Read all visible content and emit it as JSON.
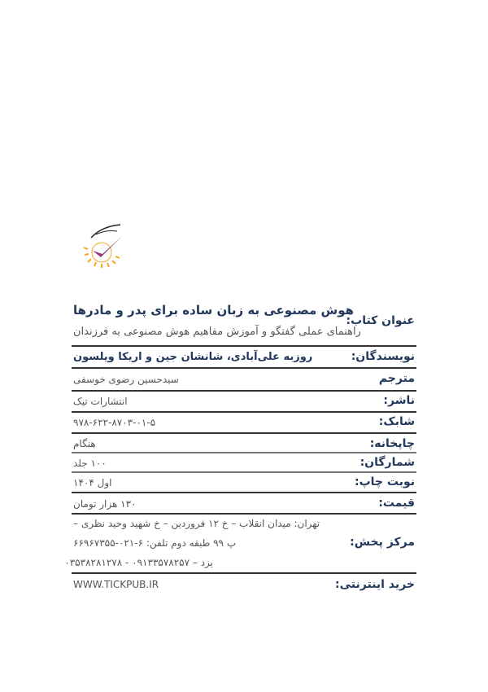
{
  "publisher_logo": {
    "text": "انتشارات تیک",
    "colors": {
      "check": "#8a3d78",
      "sun": "#f5a623"
    }
  },
  "book": {
    "title_label": "عنوان کتاب:",
    "title": "هوش مصنوعی به زبان ساده برای پدر و مادرها",
    "subtitle": "راهنمای عملی گفتگو و آموزش مفاهیم هوش مصنوعی به فرزندان"
  },
  "fields": {
    "authors": {
      "label": "نویسندگان:",
      "value": "روزبه علی‌آبادی، شانشان جین و اریکا ویلسون"
    },
    "translator": {
      "label": "مترجم",
      "value": "سیدحسین رضوی خوسفی"
    },
    "publisher": {
      "label": "ناشر:",
      "value": "انتشارات تیک"
    },
    "isbn": {
      "label": "شابک:",
      "value": "۹۷۸-۶۲۲-۸۷۰۳-۰۱-۵"
    },
    "printer": {
      "label": "چاپخانه:",
      "value": "هنگام"
    },
    "print_run": {
      "label": "شمارگان:",
      "value": "۱۰۰ جلد"
    },
    "edition": {
      "label": "نوبت چاپ:",
      "value": "اول ۱۴۰۴"
    },
    "price": {
      "label": "قیمت:",
      "value": "۱۳۰ هزار تومان"
    },
    "distribution": {
      "label": "مرکز پخش:",
      "lines": [
        "تهران: میدان انقلاب – خ ۱۲ فروردین – خ شهید وحید نظری –",
        "پ ۹۹ طبقه دوم  تلفن: ۶-۰۲۱-۶۶۹۶۷۳۵۵",
        "یزد – ۰۹۱۳۳۵۷۸۲۵۷ - ۰۳۵۳۸۲۸۱۲۷۸"
      ]
    },
    "online": {
      "label": "خرید اینترنتی:",
      "value": "WWW.TICKPUB.IR"
    }
  },
  "colors": {
    "label": "#22385c",
    "value": "#555555",
    "rule": "#333333"
  }
}
